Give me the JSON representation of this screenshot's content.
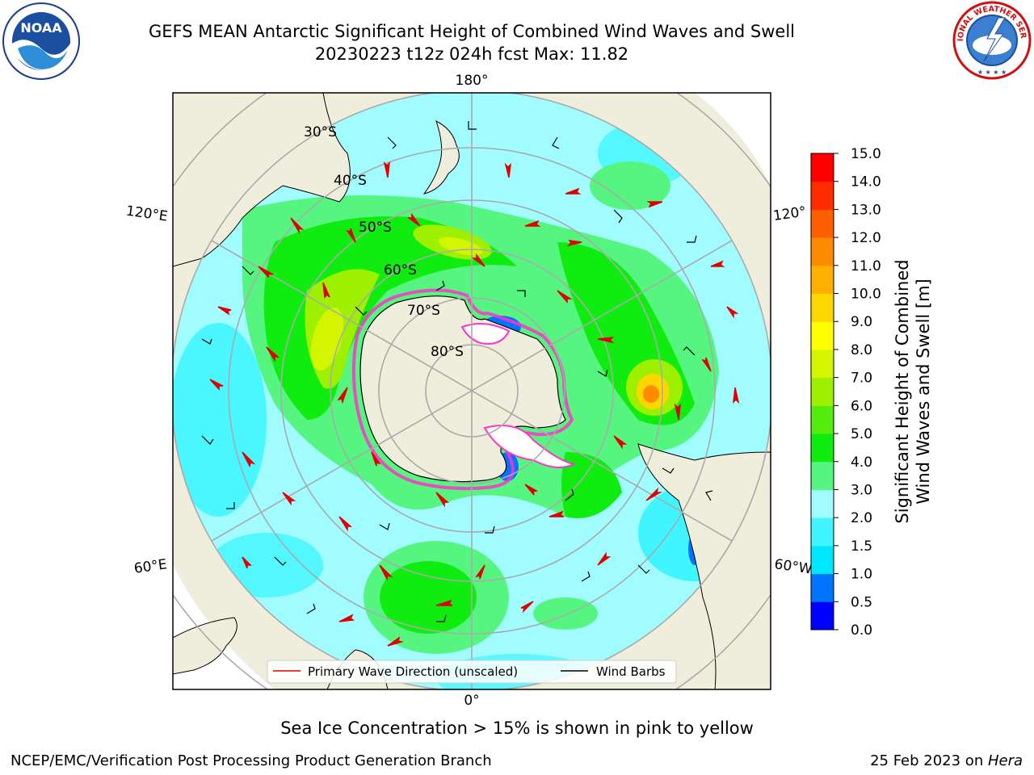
{
  "header": {
    "title": "GEFS MEAN Antarctic Significant Height of Combined Wind Waves and Swell",
    "subtitle": "20230223 t12z 024h fcst   Max: 11.82"
  },
  "logos": {
    "left": {
      "text": "NOAA",
      "icon": "noaa-logo"
    },
    "right": {
      "text": "NATIONAL WEATHER SERVICE",
      "icon": "nws-logo"
    }
  },
  "map": {
    "longitude_labels": {
      "top": "180°",
      "bottom": "0°",
      "upper_left": "120°E",
      "lower_left": "60°E",
      "upper_right": "120°",
      "lower_right": "60°W"
    },
    "latitude_labels": [
      "30°S",
      "40°S",
      "50°S",
      "60°S",
      "70°S",
      "80°S"
    ]
  },
  "legend": {
    "wave_direction": "Primary Wave Direction (unscaled)",
    "wind_barbs": "Wind Barbs"
  },
  "colorbar": {
    "label_line1": "Significant Height of Combined",
    "label_line2": "Wind Waves and Swell [m]",
    "ticks": [
      "0.0",
      "0.5",
      "1.0",
      "1.5",
      "2.0",
      "3.0",
      "4.0",
      "5.0",
      "6.0",
      "7.0",
      "8.0",
      "9.0",
      "10.0",
      "11.0",
      "12.0",
      "13.0",
      "14.0",
      "15.0"
    ],
    "colors": [
      "#0000ff",
      "#0073ff",
      "#00e8ff",
      "#40f5ff",
      "#a0fcff",
      "#55f580",
      "#10ec10",
      "#55ec10",
      "#9ef000",
      "#d4f500",
      "#ffff00",
      "#ffd700",
      "#ffb000",
      "#ff8c00",
      "#ff5f00",
      "#ff2c00",
      "#ff0000"
    ]
  },
  "chart_data": {
    "type": "heatmap",
    "projection": "south polar stereographic",
    "variable": "Significant Height of Combined Wind Waves and Swell [m]",
    "max": 11.82,
    "range": [
      0,
      15
    ]
  },
  "notes": {
    "ice": "Sea Ice Concentration > 15% is shown in pink to yellow"
  },
  "footer": {
    "left": "NCEP/EMC/Verification Post Processing Product Generation Branch",
    "right_date": "25 Feb 2023 on ",
    "right_host": "Hera"
  }
}
